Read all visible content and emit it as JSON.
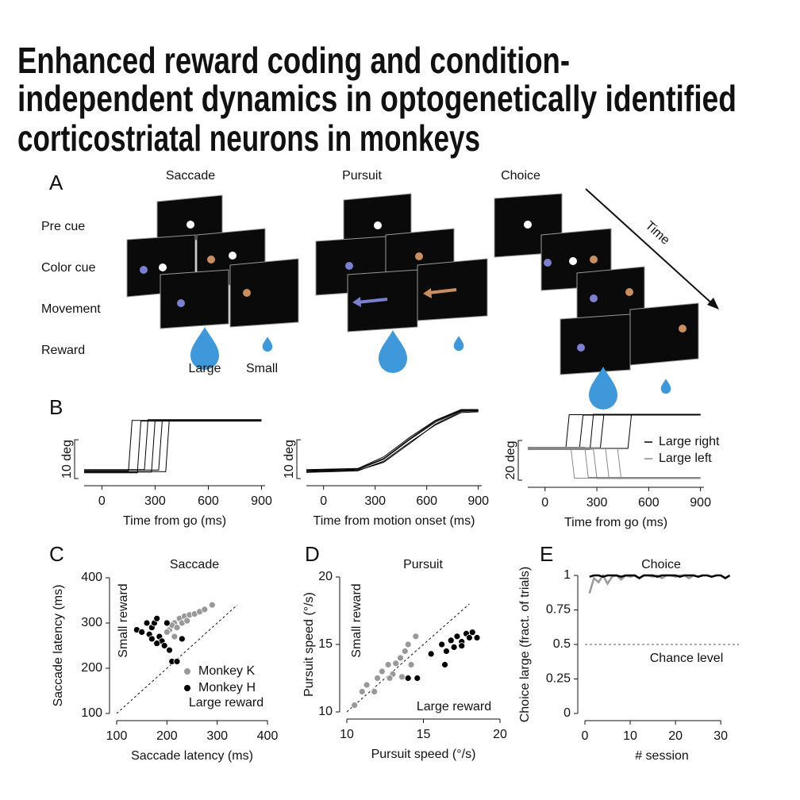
{
  "title_lines": [
    "Enhanced reward coding and condition-",
    "independent dynamics in optogenetically identified",
    "corticostriatal neurons in monkeys"
  ],
  "panel_a": {
    "label": "A",
    "columns": [
      "Saccade",
      "Pursuit",
      "Choice"
    ],
    "rows": [
      "Pre cue",
      "Color cue",
      "Movement",
      "Reward"
    ],
    "time_label": "Time",
    "reward_labels": [
      "Large",
      "Small"
    ]
  },
  "chart_data": [
    {
      "type": "line",
      "panel_label": "B",
      "x_label": "Time from go (ms)",
      "xlim": [
        -100,
        920
      ],
      "xticks": [
        0,
        300,
        600,
        900
      ],
      "ylim": [
        -2,
        16
      ],
      "scale_bar": {
        "value": 10,
        "label": "10 deg"
      },
      "series": [
        {
          "color": "#000000",
          "x": [
            -100,
            150,
            170,
            900
          ],
          "values": [
            0,
            0,
            13,
            13
          ]
        },
        {
          "color": "#000000",
          "x": [
            -100,
            200,
            220,
            900
          ],
          "values": [
            -0.5,
            -0.5,
            12.8,
            12.8
          ]
        },
        {
          "color": "#000000",
          "x": [
            -100,
            240,
            260,
            900
          ],
          "values": [
            0.3,
            0.3,
            13.2,
            13.2
          ]
        },
        {
          "color": "#000000",
          "x": [
            -100,
            280,
            300,
            900
          ],
          "values": [
            -0.3,
            -0.3,
            13,
            13
          ]
        },
        {
          "color": "#000000",
          "x": [
            -100,
            320,
            340,
            900
          ],
          "values": [
            0.2,
            0.2,
            12.9,
            12.9
          ]
        },
        {
          "color": "#000000",
          "x": [
            -100,
            360,
            380,
            900
          ],
          "values": [
            -0.2,
            -0.2,
            13.1,
            13.1
          ]
        }
      ]
    },
    {
      "type": "line",
      "panel_label": null,
      "x_label": "Time from motion onset (ms)",
      "xlim": [
        -100,
        920
      ],
      "xticks": [
        0,
        300,
        600,
        900
      ],
      "ylim": [
        -2,
        16
      ],
      "scale_bar": {
        "value": 10,
        "label": "10 deg"
      },
      "series": [
        {
          "color": "#000000",
          "x": [
            -100,
            200,
            350,
            500,
            650,
            800,
            900
          ],
          "values": [
            0,
            0.3,
            3,
            8,
            12.5,
            15.5,
            15.5
          ]
        },
        {
          "color": "#000000",
          "x": [
            -100,
            200,
            350,
            500,
            650,
            800,
            900
          ],
          "values": [
            -0.4,
            0,
            2.5,
            7.3,
            11.8,
            15,
            15.2
          ]
        },
        {
          "color": "#000000",
          "x": [
            -100,
            200,
            350,
            500,
            650,
            800,
            900
          ],
          "values": [
            0.3,
            0.6,
            3.6,
            8.6,
            13,
            15.8,
            15.8
          ]
        },
        {
          "color": "#000000",
          "x": [
            -100,
            200,
            350,
            500,
            650,
            800,
            900
          ],
          "values": [
            -0.2,
            0.1,
            2.2,
            7,
            12,
            15.3,
            15.4
          ]
        },
        {
          "color": "#000000",
          "x": [
            -100,
            200,
            350,
            500,
            650,
            800,
            900
          ],
          "values": [
            0.1,
            0.5,
            3.2,
            8.2,
            12.8,
            15.6,
            15.6
          ]
        }
      ]
    },
    {
      "type": "line",
      "panel_label": null,
      "x_label": "Time from go (ms)",
      "xlim": [
        -100,
        920
      ],
      "xticks": [
        0,
        300,
        600,
        900
      ],
      "ylim": [
        -16,
        20
      ],
      "scale_bar": {
        "value": 20,
        "label": "20 deg"
      },
      "series": [
        {
          "name": "Large right",
          "color": "#000000",
          "x": [
            -100,
            120,
            140,
            900
          ],
          "values": [
            0,
            0,
            17,
            17
          ]
        },
        {
          "color": "#000000",
          "x": [
            -100,
            200,
            220,
            900
          ],
          "values": [
            0.5,
            0.5,
            16.8,
            16.8
          ]
        },
        {
          "color": "#000000",
          "x": [
            -100,
            260,
            280,
            900
          ],
          "values": [
            -0.5,
            -0.5,
            17.2,
            17.2
          ]
        },
        {
          "color": "#000000",
          "x": [
            -100,
            320,
            340,
            900
          ],
          "values": [
            0.3,
            0.3,
            16.9,
            16.9
          ]
        },
        {
          "color": "#000000",
          "x": [
            -100,
            480,
            500,
            900
          ],
          "values": [
            0,
            0,
            17,
            17
          ]
        },
        {
          "name": "Large left",
          "color": "#888888",
          "x": [
            -100,
            150,
            170,
            900
          ],
          "values": [
            0,
            0,
            -15,
            -15
          ]
        },
        {
          "color": "#888888",
          "x": [
            -100,
            230,
            250,
            900
          ],
          "values": [
            0.6,
            0.6,
            -14.6,
            -14.6
          ]
        },
        {
          "color": "#888888",
          "x": [
            -100,
            280,
            300,
            900
          ],
          "values": [
            -0.4,
            -0.4,
            -15.2,
            -15.2
          ]
        },
        {
          "color": "#888888",
          "x": [
            -100,
            350,
            370,
            900
          ],
          "values": [
            0.2,
            0.2,
            -15,
            -15
          ]
        },
        {
          "color": "#888888",
          "x": [
            -100,
            420,
            440,
            900
          ],
          "values": [
            -0.2,
            -0.2,
            -14.8,
            -14.8
          ]
        }
      ]
    },
    {
      "type": "scatter",
      "panel_label": "C",
      "title": "Saccade",
      "x_label": "Saccade latency (ms)",
      "y_label": "Saccade latency (ms)",
      "xlim": [
        100,
        400
      ],
      "xticks": [
        100,
        200,
        300,
        400
      ],
      "ylim": [
        100,
        400
      ],
      "yticks": [
        100,
        200,
        300,
        400
      ],
      "identity_line": true,
      "annotations": [
        "Small reward",
        "Large reward"
      ],
      "series": [
        {
          "name": "Monkey K",
          "color": "#999999",
          "x": [
            215,
            225,
            235,
            245,
            255,
            265,
            275,
            290,
            205,
            210,
            220,
            200,
            230,
            240,
            215
          ],
          "values": [
            300,
            310,
            315,
            318,
            320,
            325,
            330,
            340,
            285,
            295,
            290,
            280,
            300,
            305,
            270
          ]
        },
        {
          "name": "Monkey H",
          "color": "#000000",
          "x": [
            140,
            150,
            160,
            165,
            170,
            175,
            180,
            185,
            190,
            195,
            200,
            205,
            210,
            220,
            230,
            180,
            170
          ],
          "values": [
            285,
            280,
            300,
            275,
            290,
            300,
            310,
            270,
            260,
            250,
            300,
            240,
            215,
            215,
            265,
            255,
            265
          ]
        }
      ]
    },
    {
      "type": "scatter",
      "panel_label": "D",
      "title": "Pursuit",
      "x_label": "Pursuit speed (°/s)",
      "y_label": "Pursuit speed (°/s)",
      "xlim": [
        10,
        20
      ],
      "xticks": [
        10,
        15,
        20
      ],
      "ylim": [
        10,
        20
      ],
      "yticks": [
        10,
        15,
        20
      ],
      "identity_line": true,
      "annotations": [
        "Small reward",
        "Large reward"
      ],
      "series": [
        {
          "color": "#999999",
          "x": [
            10.5,
            11,
            11.3,
            11.8,
            12,
            12.3,
            12.7,
            13,
            13.2,
            13.5,
            13.8,
            14,
            14.2,
            14.5,
            12.8,
            13.6
          ],
          "values": [
            10.5,
            11.5,
            12,
            11.5,
            12.5,
            13,
            13.5,
            12.8,
            13.6,
            14,
            14.5,
            15,
            13.5,
            15.6,
            12.5,
            12.6
          ]
        },
        {
          "color": "#000000",
          "x": [
            14,
            14.6,
            15.5,
            16.2,
            16.5,
            16.8,
            17,
            17.2,
            17.5,
            17.8,
            18,
            18.2,
            18.5,
            16.4,
            17.5
          ],
          "values": [
            12.5,
            12.5,
            14.3,
            15,
            14.5,
            15.3,
            14.8,
            15.6,
            15.2,
            15.8,
            15.5,
            15.9,
            15.5,
            13.5,
            14.9
          ]
        }
      ]
    },
    {
      "type": "line",
      "panel_label": "E",
      "title": "Choice",
      "x_label": "# session",
      "y_label": "Choice large (fract. of trials)",
      "xlim": [
        0,
        34
      ],
      "xticks": [
        0,
        10,
        20,
        30
      ],
      "ylim": [
        0,
        1
      ],
      "yticks": [
        0,
        0.25,
        0.5,
        0.75,
        1
      ],
      "hline": 0.5,
      "annotations": [
        "Chance level"
      ],
      "series": [
        {
          "color": "#999999",
          "x": [
            1,
            2,
            3,
            4,
            5,
            6,
            7,
            8,
            9,
            10,
            11,
            12,
            13,
            14,
            15,
            16,
            17,
            18,
            19,
            20,
            21,
            22,
            23,
            24,
            25,
            26
          ],
          "values": [
            0.87,
            0.98,
            0.95,
            1,
            0.94,
            0.99,
            1,
            0.97,
            1,
            0.99,
            1,
            0.98,
            1,
            1,
            0.99,
            1,
            0.98,
            1,
            1,
            0.99,
            1,
            1,
            0.98,
            1,
            0.99,
            1
          ]
        },
        {
          "color": "#000000",
          "x": [
            1,
            2,
            3,
            4,
            5,
            6,
            7,
            8,
            9,
            10,
            11,
            12,
            13,
            14,
            15,
            16,
            17,
            18,
            19,
            20,
            21,
            22,
            23,
            24,
            25,
            26,
            27,
            28,
            29,
            30,
            31,
            32
          ],
          "values": [
            0.99,
            1,
            1,
            0.99,
            1,
            1,
            1,
            0.99,
            1,
            1,
            1,
            0.98,
            1,
            1,
            1,
            0.99,
            1,
            1,
            1,
            1,
            0.99,
            1,
            1,
            1,
            0.99,
            1,
            1,
            0.99,
            1,
            1,
            0.98,
            1
          ]
        }
      ]
    }
  ]
}
